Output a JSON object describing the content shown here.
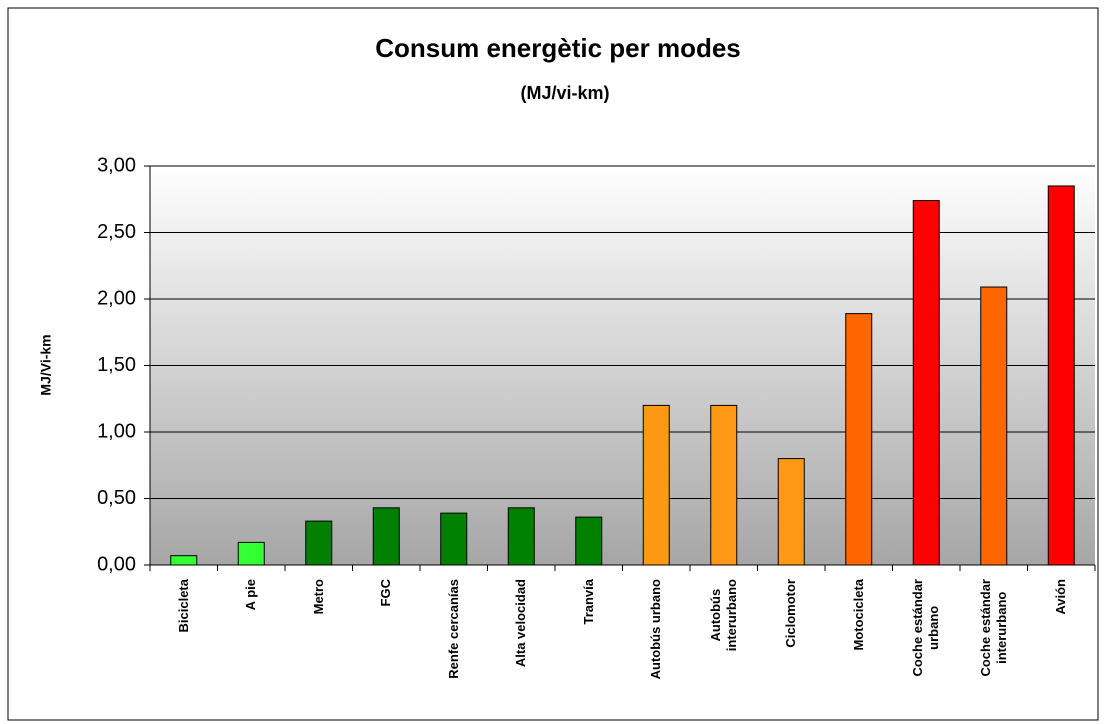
{
  "chart_data": {
    "type": "bar",
    "title": "Consum energètic per modes",
    "subtitle": "(MJ/vi-km)",
    "y_label": "MJ/Vi-km",
    "categories": [
      "Bicicleta",
      "A pie",
      "Metro",
      "FGC",
      "Renfe cercanías",
      "Alta velocidad",
      "Tranvía",
      "Autobús urbano",
      "Autobús\ninterurbano",
      "Ciclomotor",
      "Motocicleta",
      "Coche estándar\nurbano",
      "Coche estándar\ninterurbano",
      "Avión"
    ],
    "values": [
      0.07,
      0.17,
      0.33,
      0.43,
      0.39,
      0.43,
      0.36,
      1.2,
      1.2,
      0.8,
      1.89,
      2.74,
      2.09,
      2.85
    ],
    "colors": [
      "#33ff33",
      "#33ff33",
      "#007f00",
      "#007f00",
      "#007f00",
      "#007f00",
      "#007f00",
      "#ff9915",
      "#ff9915",
      "#ff9915",
      "#ff6600",
      "#ff0000",
      "#ff6600",
      "#ff0000"
    ],
    "ylim": [
      0,
      3
    ],
    "yticks": [
      {
        "value": 0,
        "label": "0,00"
      },
      {
        "value": 0.5,
        "label": "0,50"
      },
      {
        "value": 1,
        "label": "1,00"
      },
      {
        "value": 1.5,
        "label": "1,50"
      },
      {
        "value": 2,
        "label": "2,00"
      },
      {
        "value": 2.5,
        "label": "2,50"
      },
      {
        "value": 3,
        "label": "3,00"
      }
    ],
    "grid": true
  }
}
